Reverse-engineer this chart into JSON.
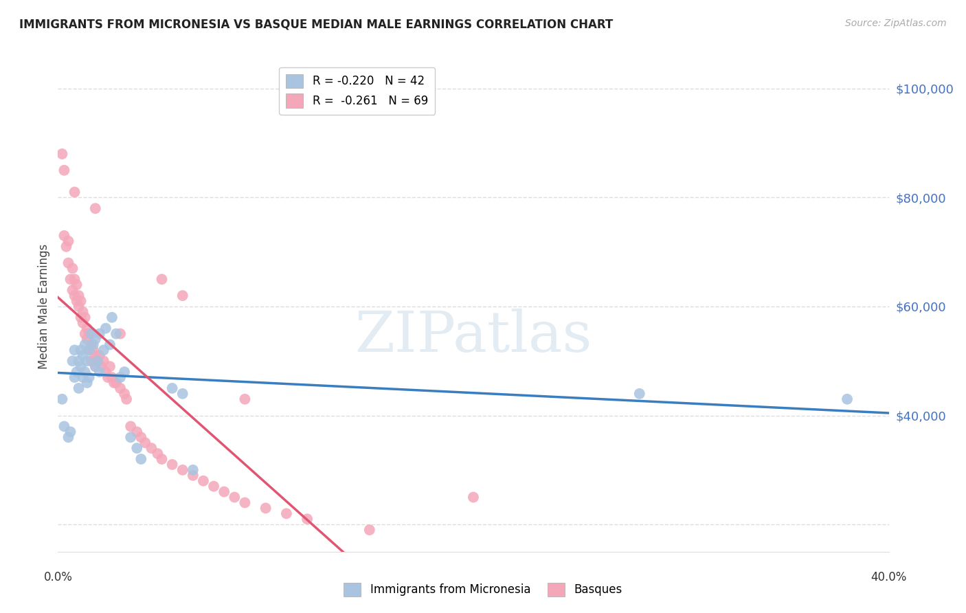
{
  "title": "IMMIGRANTS FROM MICRONESIA VS BASQUE MEDIAN MALE EARNINGS CORRELATION CHART",
  "source": "Source: ZipAtlas.com",
  "ylabel": "Median Male Earnings",
  "xmin": 0.0,
  "xmax": 0.4,
  "ymin": 15000,
  "ymax": 105000,
  "legend1_label": "R = -0.220   N = 42",
  "legend2_label": "R =  -0.261   N = 69",
  "legend1_color": "#a8c4e0",
  "legend2_color": "#f4a7b9",
  "trendline1_color": "#3a7ebf",
  "trendline2_color": "#e05572",
  "scatter1_color": "#a8c4e0",
  "scatter2_color": "#f4a7b9",
  "grid_color": "#dddddd",
  "yaxis_label_color": "#4472c4",
  "blue_scatter_x": [
    0.002,
    0.003,
    0.005,
    0.006,
    0.007,
    0.008,
    0.008,
    0.009,
    0.01,
    0.01,
    0.011,
    0.011,
    0.012,
    0.012,
    0.013,
    0.013,
    0.014,
    0.014,
    0.015,
    0.015,
    0.016,
    0.017,
    0.018,
    0.018,
    0.019,
    0.02,
    0.02,
    0.022,
    0.023,
    0.025,
    0.026,
    0.028,
    0.03,
    0.032,
    0.035,
    0.038,
    0.04,
    0.055,
    0.06,
    0.065,
    0.28,
    0.38
  ],
  "blue_scatter_y": [
    43000,
    38000,
    36000,
    37000,
    50000,
    47000,
    52000,
    48000,
    45000,
    50000,
    49000,
    52000,
    47000,
    51000,
    48000,
    53000,
    50000,
    46000,
    47000,
    52000,
    55000,
    53000,
    54000,
    49000,
    50000,
    55000,
    48000,
    52000,
    56000,
    53000,
    58000,
    55000,
    47000,
    48000,
    36000,
    34000,
    32000,
    45000,
    44000,
    30000,
    44000,
    43000
  ],
  "pink_scatter_x": [
    0.002,
    0.003,
    0.004,
    0.005,
    0.005,
    0.006,
    0.007,
    0.007,
    0.008,
    0.008,
    0.009,
    0.009,
    0.01,
    0.01,
    0.011,
    0.011,
    0.012,
    0.012,
    0.013,
    0.013,
    0.014,
    0.014,
    0.015,
    0.015,
    0.016,
    0.016,
    0.017,
    0.018,
    0.018,
    0.019,
    0.02,
    0.021,
    0.022,
    0.023,
    0.024,
    0.025,
    0.026,
    0.027,
    0.028,
    0.03,
    0.032,
    0.033,
    0.035,
    0.038,
    0.04,
    0.042,
    0.045,
    0.048,
    0.05,
    0.055,
    0.06,
    0.065,
    0.07,
    0.075,
    0.08,
    0.085,
    0.09,
    0.1,
    0.11,
    0.12,
    0.003,
    0.008,
    0.018,
    0.03,
    0.05,
    0.06,
    0.09,
    0.15,
    0.2
  ],
  "pink_scatter_y": [
    88000,
    73000,
    71000,
    68000,
    72000,
    65000,
    67000,
    63000,
    62000,
    65000,
    64000,
    61000,
    62000,
    60000,
    58000,
    61000,
    59000,
    57000,
    58000,
    55000,
    56000,
    54000,
    55000,
    52000,
    53000,
    50000,
    52000,
    51000,
    49000,
    50000,
    51000,
    49000,
    50000,
    48000,
    47000,
    49000,
    47000,
    46000,
    46000,
    45000,
    44000,
    43000,
    38000,
    37000,
    36000,
    35000,
    34000,
    33000,
    32000,
    31000,
    30000,
    29000,
    28000,
    27000,
    26000,
    25000,
    24000,
    23000,
    22000,
    21000,
    85000,
    81000,
    78000,
    55000,
    65000,
    62000,
    43000,
    19000,
    25000
  ],
  "pink_trendline_solid_end": 0.16
}
